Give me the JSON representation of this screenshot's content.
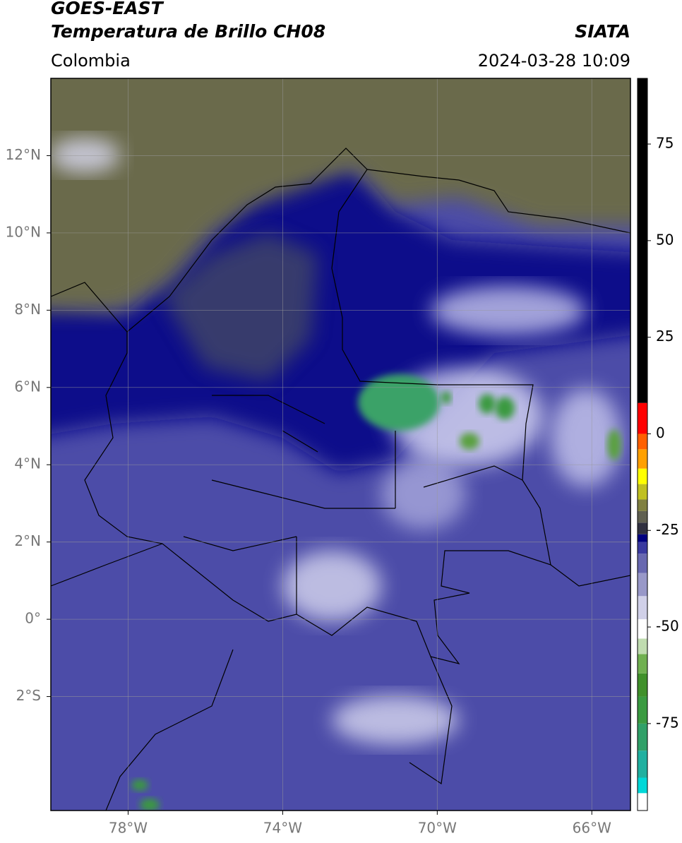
{
  "header": {
    "satellite": "GOES-EAST",
    "product": "Temperatura de Brillo CH08",
    "source": "SIATA",
    "region": "Colombia",
    "timestamp": "2024-03-28 10:09"
  },
  "map": {
    "lonlim": [
      -80,
      -65
    ],
    "latlim": [
      -4.95,
      14
    ],
    "lonticks": [
      {
        "value": -78,
        "label": "78°W"
      },
      {
        "value": -74,
        "label": "74°W"
      },
      {
        "value": -70,
        "label": "70°W"
      },
      {
        "value": -66,
        "label": "66°W"
      }
    ],
    "latticks": [
      {
        "value": 12,
        "label": "12°N"
      },
      {
        "value": 10,
        "label": "10°N"
      },
      {
        "value": 8,
        "label": "8°N"
      },
      {
        "value": 6,
        "label": "6°N"
      },
      {
        "value": 4,
        "label": "4°N"
      },
      {
        "value": 2,
        "label": "2°N"
      },
      {
        "value": 0,
        "label": "0°"
      },
      {
        "value": -2,
        "label": "2°S"
      }
    ],
    "grid": true
  },
  "colorbar": {
    "lim": [
      -97.5,
      92
    ],
    "ticks": [
      75,
      50,
      25,
      0,
      -25,
      -50,
      -75
    ],
    "stops": [
      {
        "from": -97.5,
        "to": -93,
        "color": "#ffffff"
      },
      {
        "from": -93,
        "to": -89,
        "color": "#00d8d8"
      },
      {
        "from": -89,
        "to": -82,
        "color": "#20b0a0"
      },
      {
        "from": -82,
        "to": -75,
        "color": "#30a068"
      },
      {
        "from": -75,
        "to": -68,
        "color": "#3a9a40"
      },
      {
        "from": -68,
        "to": -62,
        "color": "#40902a"
      },
      {
        "from": -62,
        "to": -57,
        "color": "#70b050"
      },
      {
        "from": -57,
        "to": -53,
        "color": "#c0dcb0"
      },
      {
        "from": -53,
        "to": -48,
        "color": "#ffffff"
      },
      {
        "from": -48,
        "to": -42,
        "color": "#d0d0e8"
      },
      {
        "from": -42,
        "to": -36,
        "color": "#9898c8"
      },
      {
        "from": -36,
        "to": -31,
        "color": "#6868b0"
      },
      {
        "from": -31,
        "to": -28,
        "color": "#3a3aa0"
      },
      {
        "from": -28,
        "to": -26,
        "color": "#000080"
      },
      {
        "from": -26,
        "to": -23,
        "color": "#303040"
      },
      {
        "from": -23,
        "to": -20,
        "color": "#606050"
      },
      {
        "from": -20,
        "to": -17,
        "color": "#808040"
      },
      {
        "from": -17,
        "to": -13,
        "color": "#c0c020"
      },
      {
        "from": -13,
        "to": -9,
        "color": "#ffff00"
      },
      {
        "from": -9,
        "to": -4,
        "color": "#ffa000"
      },
      {
        "from": -4,
        "to": 0,
        "color": "#ff6000"
      },
      {
        "from": 0,
        "to": 8,
        "color": "#ff0000"
      },
      {
        "from": 8,
        "to": 92,
        "color": "#000000"
      }
    ]
  }
}
